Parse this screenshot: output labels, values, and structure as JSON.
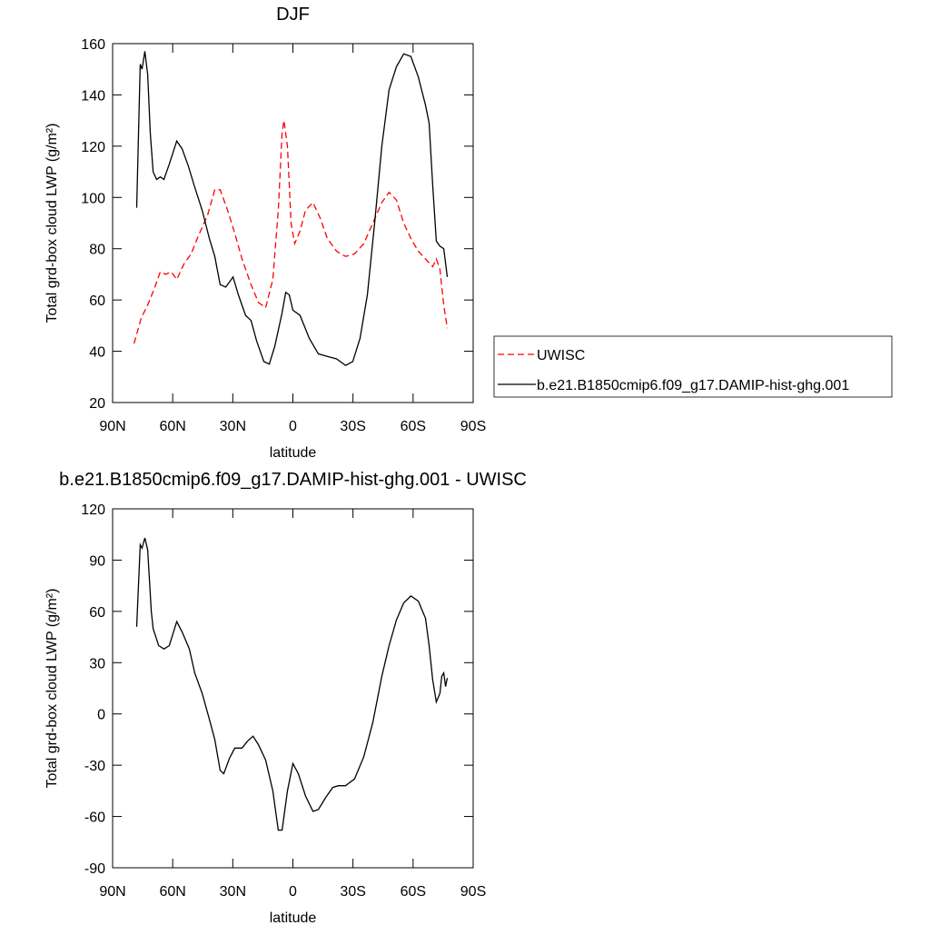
{
  "chart_data": [
    {
      "type": "line",
      "title": "DJF",
      "x_label": "latitude",
      "y_label": "Total grd-box cloud LWP (g/m²)",
      "xlim": [
        90,
        -90
      ],
      "xticks": [
        {
          "value": 90,
          "label": "90N"
        },
        {
          "value": 60,
          "label": "60N"
        },
        {
          "value": 30,
          "label": "30N"
        },
        0,
        {
          "value": -30,
          "label": "30S"
        },
        {
          "value": -60,
          "label": "60S"
        },
        {
          "value": -90,
          "label": "90S"
        }
      ],
      "ylim": [
        20,
        160
      ],
      "yticks": [
        20,
        40,
        60,
        80,
        100,
        120,
        140,
        160
      ],
      "legend": "right",
      "series": [
        {
          "name": "UWISC",
          "color": "#ff0000",
          "dashed": true,
          "x": [
            79.3,
            75.7,
            72.5,
            68.9,
            66.2,
            63.5,
            60.7,
            58,
            54.4,
            50.8,
            47.2,
            42.6,
            39,
            36.3,
            32.6,
            29,
            25.4,
            20.9,
            17.2,
            13.6,
            10,
            7.3,
            5.4,
            4.5,
            2.7,
            0.9,
            -0.9,
            -3.6,
            -6.3,
            -10,
            -13.6,
            -17.2,
            -21.8,
            -26.3,
            -30.8,
            -35.4,
            -39.9,
            -44.4,
            -48,
            -51.7,
            -55.3,
            -58.9,
            -62.6,
            -66.2,
            -69.8,
            -71.6,
            -73.4,
            -75.3,
            -77.1
          ],
          "values": [
            43,
            53,
            58,
            65,
            71,
            70,
            71,
            68,
            74,
            78,
            85,
            93,
            103,
            103,
            95,
            86,
            76,
            66,
            59,
            57,
            68,
            95,
            125,
            130,
            120,
            90,
            82,
            87,
            95,
            98,
            92,
            84,
            79,
            77,
            78,
            82,
            90,
            98,
            102,
            99,
            90,
            84,
            79,
            76,
            73,
            76,
            72,
            58,
            49
          ]
        },
        {
          "name": "b.e21.B1850cmip6.f09_g17.DAMIP-hist-ghg.001",
          "color": "#000000",
          "dashed": false,
          "x": [
            78,
            76.2,
            75.3,
            73.9,
            72.5,
            71.2,
            69.8,
            68,
            66.2,
            64.4,
            61.7,
            58,
            55.3,
            52.1,
            49,
            45.3,
            41.7,
            39,
            36.3,
            33.5,
            29.9,
            27.2,
            23.6,
            20.9,
            18.1,
            14.5,
            11.8,
            9,
            5.4,
            3.6,
            1.8,
            0,
            -3.6,
            -8.2,
            -12.7,
            -17.2,
            -21.8,
            -26.3,
            -29.9,
            -33.5,
            -37.2,
            -40.8,
            -44.4,
            -48,
            -51.7,
            -55.3,
            -58.9,
            -62.6,
            -66.2,
            -68,
            -69.8,
            -71.6,
            -73.4,
            -75.3,
            -77.1
          ],
          "values": [
            96,
            152,
            150,
            157,
            148,
            125,
            110,
            107,
            108,
            107,
            113,
            122,
            119,
            112,
            104,
            95,
            84,
            77,
            66,
            65,
            69,
            62,
            54,
            52,
            44,
            36,
            35,
            42,
            55,
            63,
            62,
            56,
            54,
            45,
            39,
            38,
            37,
            34.5,
            36,
            45,
            62,
            90,
            120,
            142,
            151,
            156,
            155,
            147,
            136,
            129,
            105,
            83,
            81,
            80,
            69
          ]
        }
      ]
    },
    {
      "type": "line",
      "title": "b.e21.B1850cmip6.f09_g17.DAMIP-hist-ghg.001 - UWISC",
      "x_label": "latitude",
      "y_label": "Total grd-box cloud LWP (g/m²)",
      "xlim": [
        90,
        -90
      ],
      "xticks": [
        {
          "value": 90,
          "label": "90N"
        },
        {
          "value": 60,
          "label": "60N"
        },
        {
          "value": 30,
          "label": "30N"
        },
        0,
        {
          "value": -30,
          "label": "30S"
        },
        {
          "value": -60,
          "label": "60S"
        },
        {
          "value": -90,
          "label": "90S"
        }
      ],
      "ylim": [
        -90,
        120
      ],
      "yticks": [
        -90,
        -60,
        -30,
        0,
        30,
        60,
        90,
        120
      ],
      "series": [
        {
          "color": "#000000",
          "dashed": false,
          "x": [
            78,
            76.2,
            75.3,
            73.9,
            72.5,
            70.7,
            69.8,
            67,
            64.4,
            61.7,
            58,
            55.3,
            51.7,
            49,
            45.3,
            41.7,
            39,
            36.3,
            34.5,
            31.7,
            29,
            25.4,
            22.7,
            19.9,
            17.2,
            13.6,
            10,
            7.3,
            5.4,
            2.7,
            0,
            -2.7,
            -6.3,
            -10,
            -12.7,
            -16.3,
            -19.9,
            -22.7,
            -26.3,
            -30.8,
            -35.4,
            -39.9,
            -44.4,
            -48,
            -51.7,
            -55.3,
            -58.9,
            -62.6,
            -66.2,
            -68,
            -69.8,
            -71.6,
            -73.4,
            -74.3,
            -75.3,
            -76.2,
            -77.1
          ],
          "values": [
            51,
            99,
            97,
            103,
            96,
            60,
            50,
            40,
            38,
            40,
            54,
            48,
            38,
            24,
            12,
            -3,
            -15,
            -33,
            -35,
            -26,
            -20,
            -20,
            -16,
            -13,
            -18,
            -27,
            -45,
            -68,
            -68,
            -45,
            -29,
            -35,
            -48,
            -57,
            -56,
            -49,
            -43,
            -42,
            -42,
            -38,
            -25,
            -5,
            22,
            40,
            55,
            65,
            69,
            66,
            56,
            40,
            20,
            7,
            12,
            22,
            24,
            16,
            21
          ]
        }
      ]
    }
  ]
}
